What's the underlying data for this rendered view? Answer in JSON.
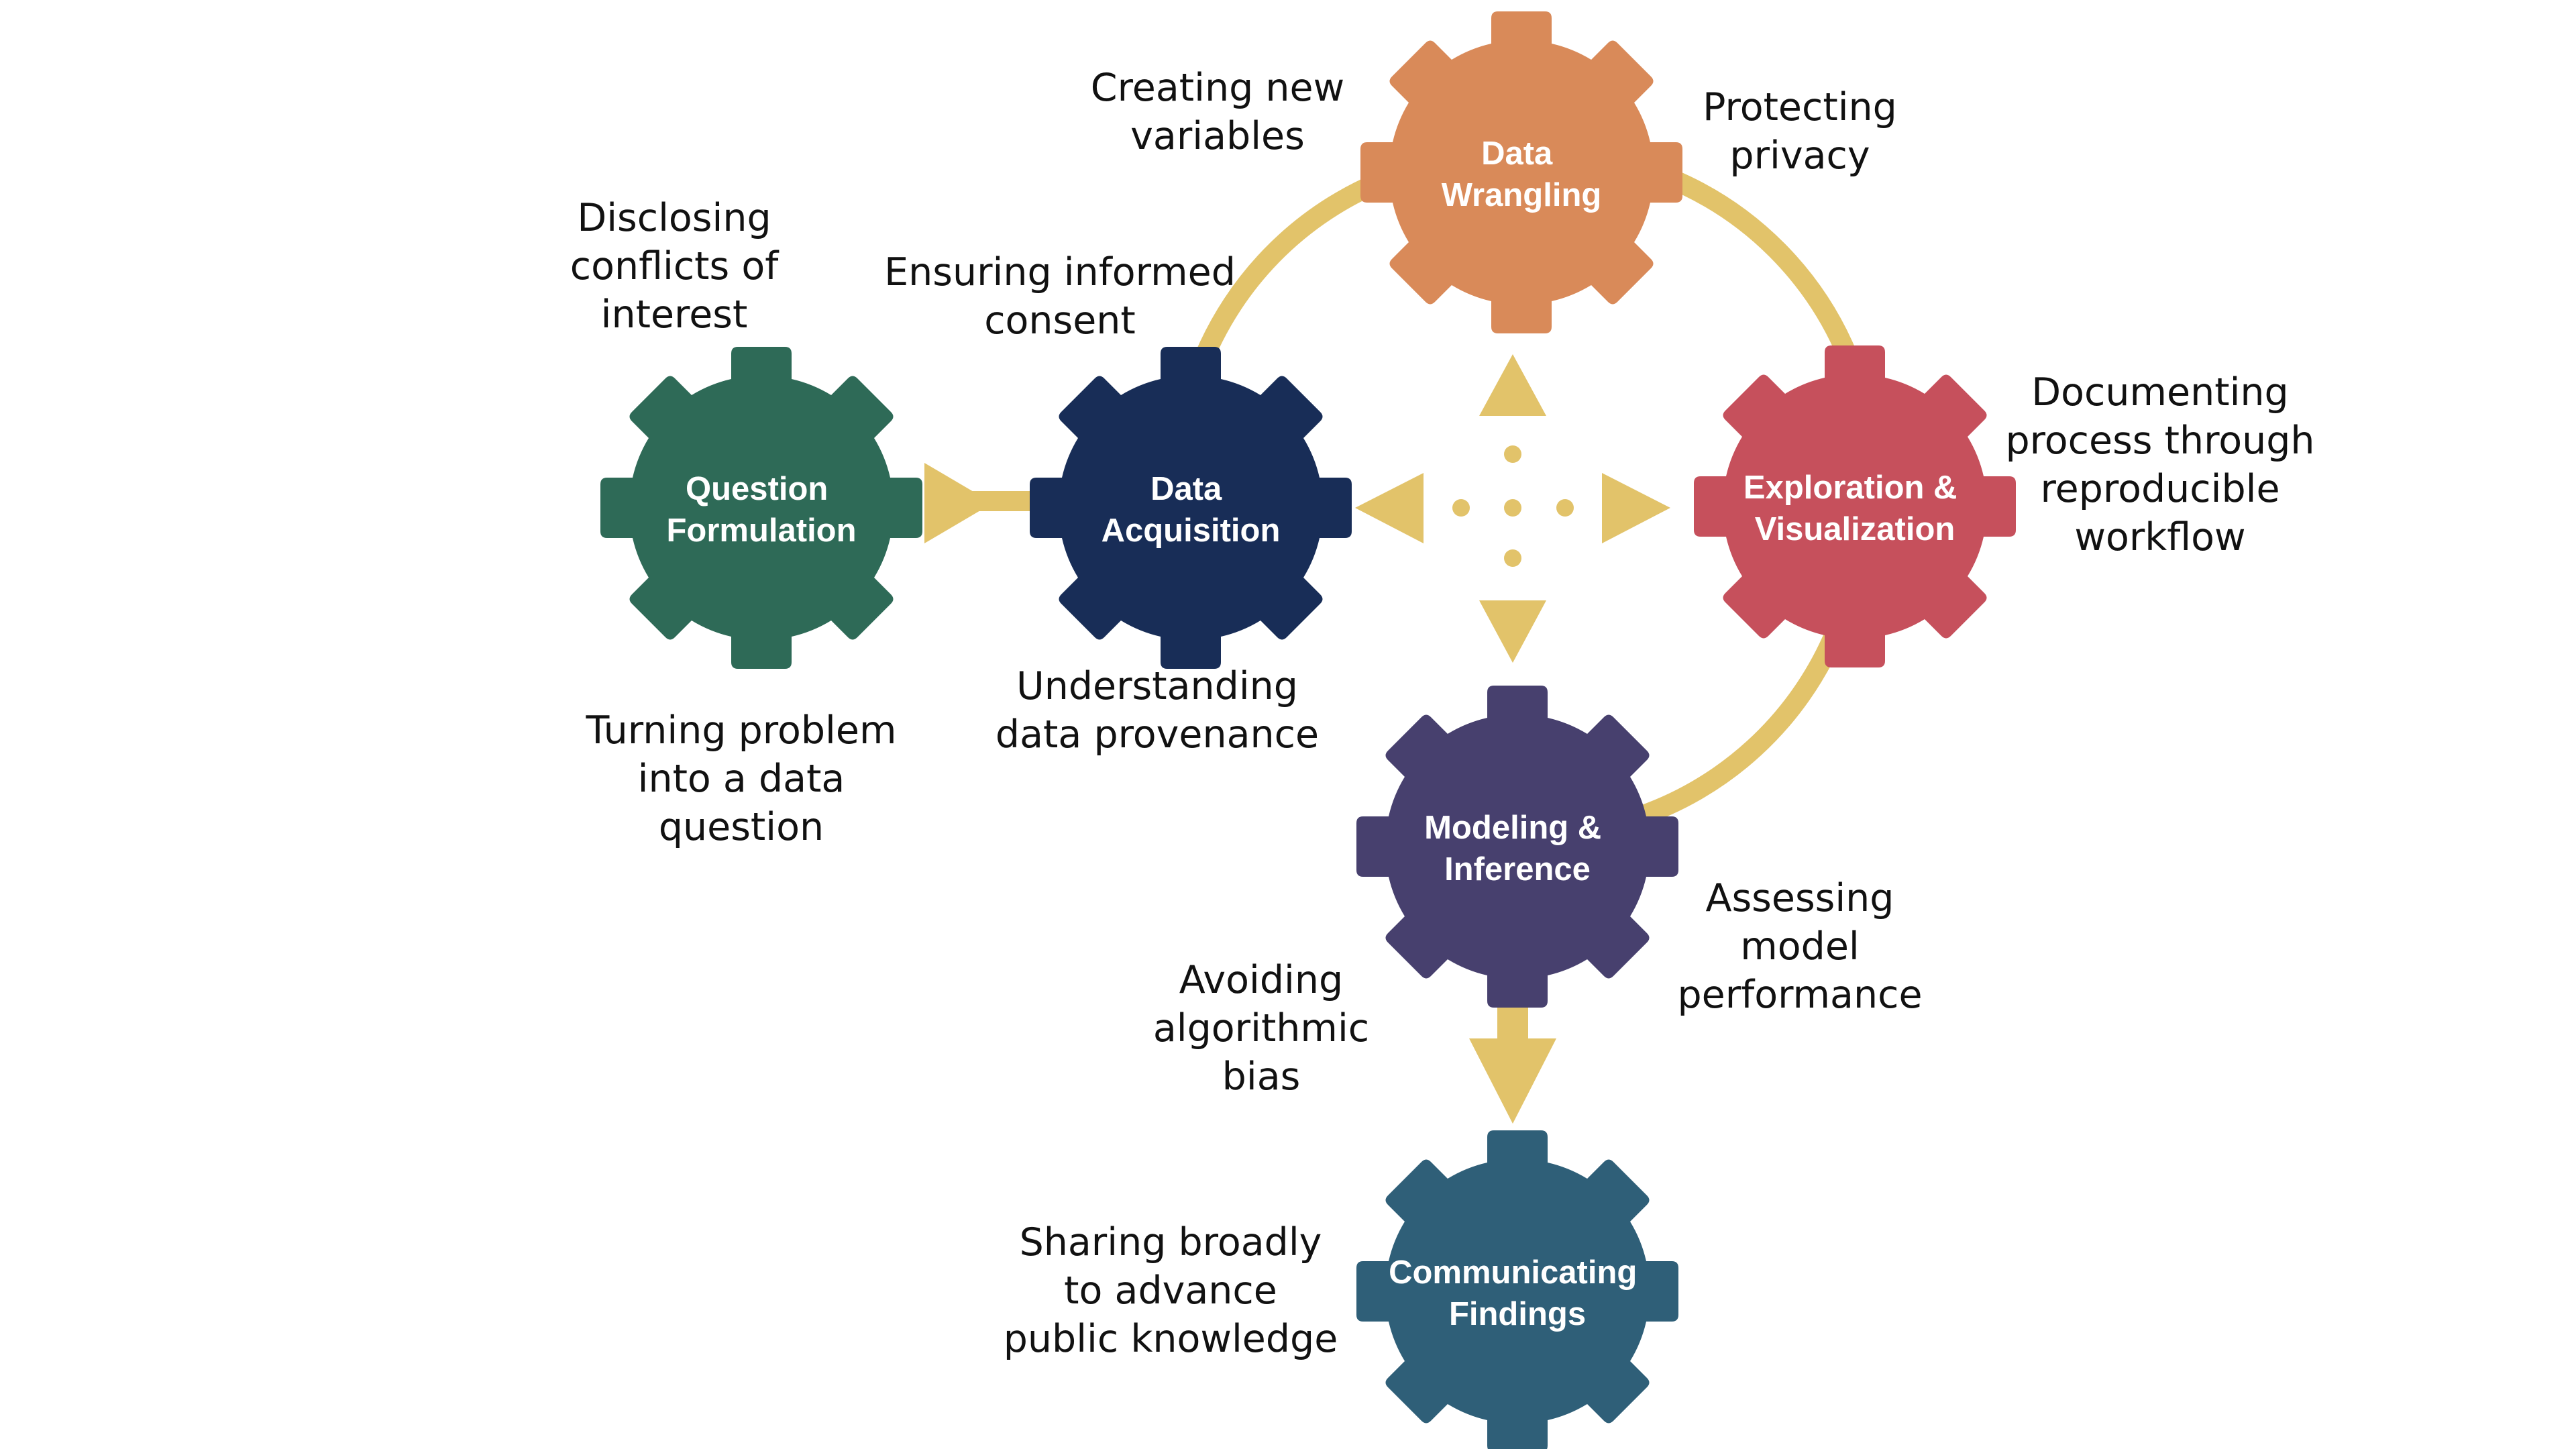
{
  "colors": {
    "connector": "#E2C36A",
    "question_formulation": "#2E6A57",
    "data_acquisition": "#182D57",
    "data_wrangling": "#D98A59",
    "exploration_visualization": "#C6505C",
    "modeling_inference": "#47406E",
    "communicating_findings": "#2F5F78",
    "label_text": "#FFFFFF",
    "note_text": "#111111"
  },
  "gears": {
    "question_formulation": {
      "line1": "Question",
      "line2": "Formulation"
    },
    "data_acquisition": {
      "line1": "Data",
      "line2": "Acquisition"
    },
    "data_wrangling": {
      "line1": "Data",
      "line2": "Wrangling"
    },
    "exploration_visualization": {
      "line1": "Exploration &",
      "line2": "Visualization"
    },
    "modeling_inference": {
      "line1": "Modeling &",
      "line2": "Inference"
    },
    "communicating_findings": {
      "line1": "Communicating",
      "line2": "Findings"
    }
  },
  "notes": {
    "disclosing_conflicts": [
      "Disclosing",
      "conflicts of",
      "interest"
    ],
    "turning_problem": [
      "Turning problem",
      "into a data",
      "question"
    ],
    "ensuring_consent": [
      "Ensuring informed",
      "consent"
    ],
    "understanding_provenance": [
      "Understanding",
      "data provenance"
    ],
    "creating_variables": [
      "Creating new",
      "variables"
    ],
    "protecting_privacy": [
      "Protecting",
      "privacy"
    ],
    "documenting_process": [
      "Documenting",
      "process through",
      "reproducible",
      "workflow"
    ],
    "assessing_performance": [
      "Assessing",
      "model",
      "performance"
    ],
    "avoiding_bias": [
      "Avoiding",
      "algorithmic",
      "bias"
    ],
    "sharing_knowledge": [
      "Sharing broadly",
      "to advance",
      "public knowledge"
    ]
  }
}
